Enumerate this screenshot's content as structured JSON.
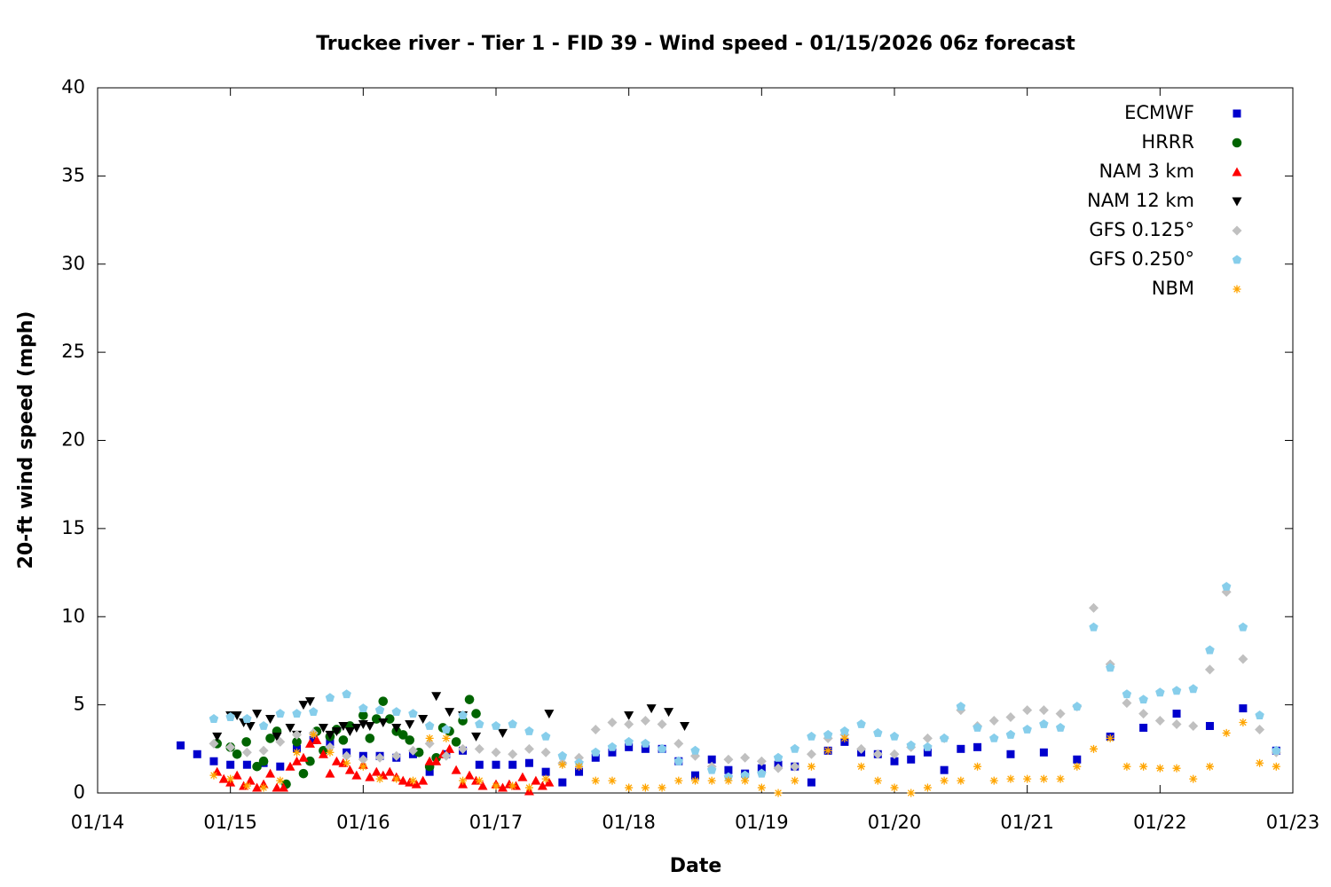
{
  "chart_data": {
    "type": "scatter",
    "title": "Truckee river - Tier 1 - FID 39 - Wind speed - 01/15/2026 06z forecast",
    "xlabel": "Date",
    "ylabel": "20-ft wind speed (mph)",
    "xlim": [
      14,
      23
    ],
    "xticks": [
      {
        "value": 14,
        "label": "01/14"
      },
      {
        "value": 15,
        "label": "01/15"
      },
      {
        "value": 16,
        "label": "01/16"
      },
      {
        "value": 17,
        "label": "01/17"
      },
      {
        "value": 18,
        "label": "01/18"
      },
      {
        "value": 19,
        "label": "01/19"
      },
      {
        "value": 20,
        "label": "01/20"
      },
      {
        "value": 21,
        "label": "01/21"
      },
      {
        "value": 22,
        "label": "01/22"
      },
      {
        "value": 23,
        "label": "01/23"
      }
    ],
    "ylim": [
      0,
      40
    ],
    "yticks": [
      0,
      5,
      10,
      15,
      20,
      25,
      30,
      35,
      40
    ],
    "legend": "top-right",
    "series": [
      {
        "name": "ECMWF",
        "color": "#0000cd",
        "marker": "square",
        "x": [
          14.625,
          14.75,
          14.875,
          15,
          15.125,
          15.25,
          15.375,
          15.5,
          15.625,
          15.75,
          15.875,
          16,
          16.125,
          16.25,
          16.375,
          16.5,
          16.625,
          16.75,
          16.875,
          17,
          17.125,
          17.25,
          17.375,
          17.5,
          17.625,
          17.75,
          17.875,
          18,
          18.125,
          18.25,
          18.375,
          18.5,
          18.625,
          18.75,
          18.875,
          19,
          19.125,
          19.25,
          19.375,
          19.5,
          19.625,
          19.75,
          19.875,
          20,
          20.125,
          20.25,
          20.375,
          20.5,
          20.625,
          20.875,
          21.125,
          21.375,
          21.625,
          21.875,
          22.125,
          22.375,
          22.625,
          22.875
        ],
        "values": [
          2.7,
          2.2,
          1.8,
          1.6,
          1.6,
          1.7,
          1.5,
          2.5,
          3.0,
          2.9,
          2.3,
          2.1,
          2.1,
          2.0,
          2.2,
          1.2,
          2.2,
          2.4,
          1.6,
          1.6,
          1.6,
          1.7,
          1.2,
          0.6,
          1.2,
          2.0,
          2.3,
          2.6,
          2.5,
          2.5,
          1.8,
          1.0,
          1.9,
          1.3,
          1.1,
          1.4,
          1.6,
          1.5,
          0.6,
          2.4,
          2.9,
          2.3,
          2.2,
          1.8,
          1.9,
          2.3,
          1.3,
          2.5,
          2.6,
          2.2,
          2.3,
          1.9,
          3.2,
          3.7,
          4.5,
          3.8,
          4.8,
          2.4
        ]
      },
      {
        "name": "HRRR",
        "color": "#006400",
        "marker": "circle",
        "x": [
          14.9,
          15.0,
          15.05,
          15.12,
          15.2,
          15.25,
          15.3,
          15.35,
          15.42,
          15.5,
          15.55,
          15.6,
          15.65,
          15.7,
          15.75,
          15.8,
          15.85,
          15.9,
          16.0,
          16.05,
          16.1,
          16.15,
          16.2,
          16.25,
          16.3,
          16.35,
          16.42,
          16.5,
          16.55,
          16.6,
          16.65,
          16.7,
          16.75,
          16.8,
          16.85
        ],
        "values": [
          2.8,
          2.6,
          2.2,
          2.9,
          1.5,
          1.8,
          3.1,
          3.5,
          0.5,
          2.9,
          1.1,
          1.8,
          3.5,
          2.4,
          3.2,
          3.6,
          3.0,
          3.8,
          4.4,
          3.1,
          4.2,
          5.2,
          4.2,
          3.5,
          3.3,
          3.0,
          2.3,
          1.5,
          2.0,
          3.7,
          3.5,
          2.9,
          4.1,
          5.3,
          4.5
        ]
      },
      {
        "name": "NAM 3 km",
        "color": "#ff0000",
        "marker": "triangle-up",
        "x": [
          14.9,
          14.95,
          15.0,
          15.05,
          15.1,
          15.15,
          15.2,
          15.25,
          15.3,
          15.35,
          15.4,
          15.45,
          15.5,
          15.55,
          15.6,
          15.65,
          15.7,
          15.75,
          15.8,
          15.85,
          15.9,
          15.95,
          16.0,
          16.05,
          16.1,
          16.15,
          16.2,
          16.25,
          16.3,
          16.35,
          16.4,
          16.45,
          16.5,
          16.55,
          16.6,
          16.65,
          16.7,
          16.75,
          16.8,
          16.85,
          16.9,
          17.0,
          17.05,
          17.1,
          17.15,
          17.2,
          17.25,
          17.3,
          17.35,
          17.4
        ],
        "values": [
          1.2,
          0.8,
          0.6,
          1.0,
          0.4,
          0.7,
          0.3,
          0.5,
          1.1,
          0.3,
          0.3,
          1.5,
          1.8,
          2.0,
          2.8,
          3.0,
          2.2,
          1.1,
          1.8,
          1.7,
          1.3,
          1.0,
          1.6,
          0.9,
          1.2,
          1.0,
          1.2,
          0.9,
          0.7,
          0.6,
          0.5,
          0.7,
          1.8,
          1.8,
          2.2,
          2.5,
          1.3,
          0.5,
          1.0,
          0.7,
          0.4,
          0.5,
          0.3,
          0.5,
          0.4,
          0.9,
          0.1,
          0.7,
          0.4,
          0.6
        ]
      },
      {
        "name": "NAM 12 km",
        "color": "#000000",
        "marker": "triangle-down",
        "x": [
          14.9,
          15.0,
          15.05,
          15.1,
          15.15,
          15.2,
          15.3,
          15.35,
          15.45,
          15.5,
          15.55,
          15.6,
          15.7,
          15.75,
          15.8,
          15.85,
          15.9,
          15.95,
          16.0,
          16.05,
          16.15,
          16.25,
          16.35,
          16.45,
          16.55,
          16.65,
          16.75,
          16.85,
          17.05,
          17.4,
          18.0,
          18.17,
          18.3,
          18.42
        ],
        "values": [
          3.2,
          4.4,
          4.4,
          4.0,
          3.8,
          4.5,
          4.2,
          3.2,
          3.7,
          3.3,
          5.0,
          5.2,
          3.7,
          3.3,
          3.5,
          3.8,
          3.5,
          3.7,
          3.9,
          3.8,
          4.0,
          3.7,
          3.9,
          4.2,
          5.5,
          4.6,
          4.4,
          3.2,
          3.4,
          4.5,
          4.4,
          4.8,
          4.6,
          3.8
        ]
      },
      {
        "name": "GFS 0.125°",
        "color": "#c0c0c0",
        "marker": "diamond",
        "x": [
          14.875,
          15,
          15.125,
          15.25,
          15.375,
          15.5,
          15.625,
          15.75,
          15.875,
          16,
          16.125,
          16.25,
          16.375,
          16.5,
          16.625,
          16.75,
          16.875,
          17,
          17.125,
          17.25,
          17.375,
          17.5,
          17.625,
          17.75,
          17.875,
          18,
          18.125,
          18.25,
          18.375,
          18.5,
          18.625,
          18.75,
          18.875,
          19,
          19.125,
          19.25,
          19.375,
          19.5,
          19.625,
          19.75,
          19.875,
          20,
          20.125,
          20.25,
          20.375,
          20.5,
          20.625,
          20.75,
          20.875,
          21,
          21.125,
          21.25,
          21.375,
          21.5,
          21.625,
          21.75,
          21.875,
          22,
          22.125,
          22.25,
          22.375,
          22.5,
          22.625,
          22.75,
          22.875
        ],
        "values": [
          2.8,
          2.6,
          2.3,
          2.4,
          2.9,
          3.3,
          3.4,
          2.6,
          2.1,
          1.9,
          2.0,
          2.1,
          2.4,
          2.8,
          2.1,
          2.5,
          2.5,
          2.3,
          2.2,
          2.5,
          2.3,
          1.7,
          2.0,
          3.6,
          4.0,
          3.9,
          4.1,
          3.9,
          2.8,
          2.1,
          1.5,
          1.9,
          2.0,
          1.8,
          1.4,
          1.5,
          2.2,
          3.1,
          3.3,
          2.5,
          2.2,
          2.2,
          2.6,
          3.1,
          3.1,
          4.7,
          3.8,
          4.1,
          4.3,
          4.7,
          4.7,
          4.5,
          4.9,
          10.5,
          7.3,
          5.1,
          4.5,
          4.1,
          3.9,
          3.8,
          7.0,
          11.4,
          7.6,
          3.6,
          2.3
        ]
      },
      {
        "name": "GFS 0.250°",
        "color": "#87ceeb",
        "marker": "pentagon",
        "x": [
          14.875,
          15,
          15.125,
          15.25,
          15.375,
          15.5,
          15.625,
          15.75,
          15.875,
          16,
          16.125,
          16.25,
          16.375,
          16.5,
          16.625,
          16.75,
          16.875,
          17,
          17.125,
          17.25,
          17.375,
          17.5,
          17.625,
          17.75,
          17.875,
          18,
          18.125,
          18.25,
          18.375,
          18.5,
          18.625,
          18.75,
          18.875,
          19,
          19.125,
          19.25,
          19.375,
          19.5,
          19.625,
          19.75,
          19.875,
          20,
          20.125,
          20.25,
          20.375,
          20.5,
          20.625,
          20.75,
          20.875,
          21,
          21.125,
          21.25,
          21.375,
          21.5,
          21.625,
          21.75,
          21.875,
          22,
          22.125,
          22.25,
          22.375,
          22.5,
          22.625,
          22.75,
          22.875
        ],
        "values": [
          4.2,
          4.3,
          4.2,
          3.8,
          4.5,
          4.5,
          4.6,
          5.4,
          5.6,
          4.8,
          4.7,
          4.6,
          4.5,
          3.8,
          3.6,
          4.4,
          3.9,
          3.8,
          3.9,
          3.5,
          3.2,
          2.1,
          1.7,
          2.3,
          2.6,
          2.9,
          2.8,
          2.5,
          1.8,
          2.4,
          1.3,
          0.9,
          1.0,
          1.1,
          2.0,
          2.5,
          3.2,
          3.3,
          3.5,
          3.9,
          3.4,
          3.2,
          2.7,
          2.6,
          3.1,
          4.9,
          3.7,
          3.1,
          3.3,
          3.6,
          3.9,
          3.7,
          4.9,
          9.4,
          7.1,
          5.6,
          5.3,
          5.7,
          5.8,
          5.9,
          8.1,
          11.7,
          9.4,
          4.4,
          2.4
        ]
      },
      {
        "name": "NBM",
        "color": "#ffa500",
        "marker": "asterisk",
        "x": [
          14.875,
          15,
          15.125,
          15.25,
          15.375,
          15.5,
          15.625,
          15.75,
          15.875,
          16,
          16.125,
          16.25,
          16.375,
          16.5,
          16.625,
          16.75,
          16.875,
          17,
          17.125,
          17.25,
          17.375,
          17.5,
          17.625,
          17.75,
          17.875,
          18,
          18.125,
          18.25,
          18.375,
          18.5,
          18.625,
          18.75,
          18.875,
          19,
          19.125,
          19.25,
          19.375,
          19.5,
          19.625,
          19.75,
          19.875,
          20,
          20.125,
          20.25,
          20.375,
          20.5,
          20.625,
          20.75,
          20.875,
          21,
          21.125,
          21.25,
          21.375,
          21.5,
          21.625,
          21.75,
          21.875,
          22,
          22.125,
          22.25,
          22.375,
          22.5,
          22.625,
          22.75,
          22.875
        ],
        "values": [
          1.0,
          0.8,
          0.4,
          0.3,
          0.7,
          2.3,
          3.3,
          2.3,
          1.7,
          1.5,
          0.8,
          0.8,
          0.7,
          3.1,
          3.1,
          0.7,
          0.7,
          0.4,
          0.4,
          0.3,
          0.8,
          1.6,
          1.5,
          0.7,
          0.7,
          0.3,
          0.3,
          0.3,
          0.7,
          0.7,
          0.7,
          0.7,
          0.7,
          0.3,
          0.0,
          0.7,
          1.5,
          2.4,
          3.1,
          1.5,
          0.7,
          0.3,
          0.0,
          0.3,
          0.7,
          0.7,
          1.5,
          0.7,
          0.8,
          0.8,
          0.8,
          0.8,
          1.5,
          2.5,
          3.1,
          1.5,
          1.5,
          1.4,
          1.4,
          0.8,
          1.5,
          3.4,
          4.0,
          1.7,
          1.5
        ]
      }
    ]
  }
}
